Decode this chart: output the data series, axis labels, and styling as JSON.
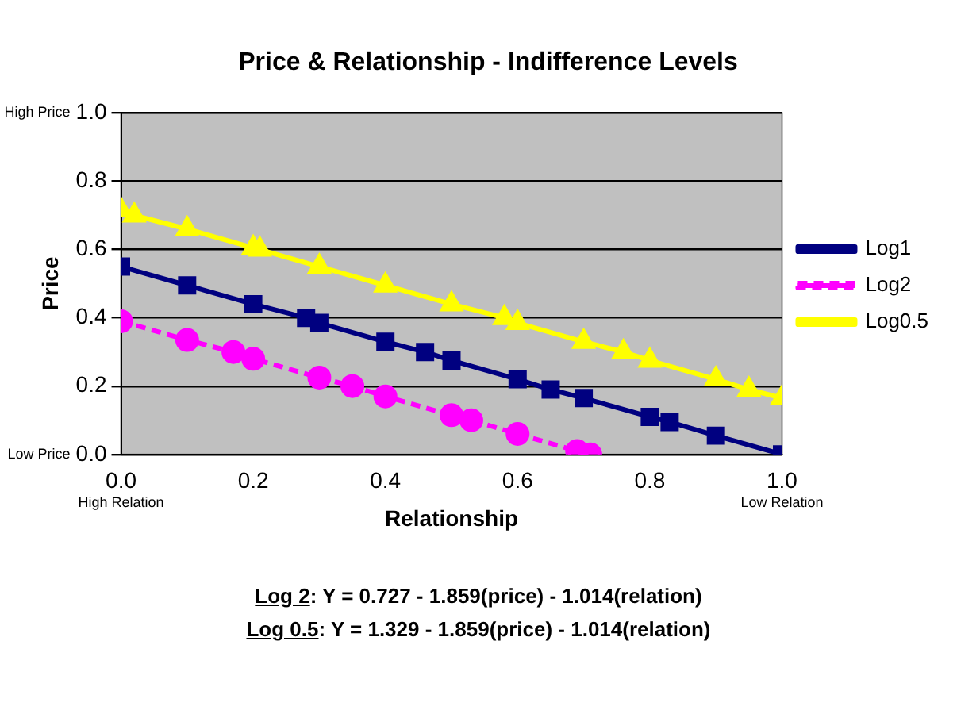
{
  "chart_data": {
    "type": "line",
    "title": "Price & Relationship - Indifference Levels",
    "xlabel": "Relationship",
    "ylabel": "Price",
    "xlim": [
      0,
      1
    ],
    "xticks": [
      {
        "value": 0,
        "label": "0.0"
      },
      0.2,
      0.4,
      0.6,
      0.8,
      {
        "value": 1,
        "label": "1.0"
      }
    ],
    "ylim": [
      0,
      1
    ],
    "yticks": [
      {
        "value": 0,
        "label": "0.0"
      },
      0.2,
      0.4,
      0.6,
      0.8,
      {
        "value": 1,
        "label": "1.0"
      }
    ],
    "grid": "y",
    "legend": "right",
    "series": [
      {
        "name": "Log1",
        "color": "#000080",
        "marker": "square",
        "line_style": "solid",
        "x": [
          0,
          0.1,
          0.2,
          0.28,
          0.3,
          0.4,
          0.46,
          0.5,
          0.6,
          0.65,
          0.7,
          0.8,
          0.83,
          0.9,
          1.0
        ],
        "values": [
          0.55,
          0.495,
          0.44,
          0.4,
          0.385,
          0.33,
          0.3,
          0.275,
          0.22,
          0.19,
          0.165,
          0.11,
          0.095,
          0.055,
          0.0
        ]
      },
      {
        "name": "Log2",
        "color": "#ff00ff",
        "marker": "circle",
        "line_style": "dashed",
        "x": [
          0,
          0.1,
          0.17,
          0.2,
          0.3,
          0.35,
          0.4,
          0.5,
          0.53,
          0.6,
          0.69,
          0.71
        ],
        "values": [
          0.39,
          0.335,
          0.3,
          0.28,
          0.225,
          0.2,
          0.17,
          0.115,
          0.1,
          0.06,
          0.01,
          0.0
        ]
      },
      {
        "name": "Log0.5",
        "color": "#ffff00",
        "marker": "triangle",
        "line_style": "solid",
        "x": [
          0,
          0.02,
          0.1,
          0.2,
          0.21,
          0.3,
          0.4,
          0.5,
          0.58,
          0.6,
          0.7,
          0.76,
          0.8,
          0.9,
          0.95,
          1.0
        ],
        "values": [
          0.715,
          0.7,
          0.66,
          0.605,
          0.6,
          0.55,
          0.495,
          0.44,
          0.4,
          0.385,
          0.33,
          0.3,
          0.275,
          0.22,
          0.19,
          0.165
        ]
      }
    ],
    "annotations": [
      "High Price",
      "Low Price",
      "High Relation",
      "Low Relation",
      "Log 2: Y = 0.727 - 1.859(price) - 1.014(relation)",
      "Log 0.5: Y = 1.329 - 1.859(price) - 1.014(relation)"
    ]
  }
}
